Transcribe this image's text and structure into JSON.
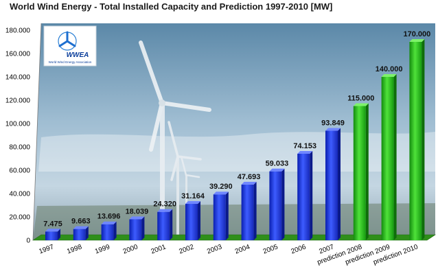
{
  "chart_data": {
    "type": "bar",
    "title": "World Wind Energy - Total Installed Capacity and Prediction 1997-2010 [MW]",
    "categories": [
      "1997",
      "1998",
      "1999",
      "2000",
      "2001",
      "2002",
      "2003",
      "2004",
      "2005",
      "2006",
      "2007",
      "prediction 2008",
      "prediction 2009",
      "prediction 2010"
    ],
    "values": [
      7475,
      9663,
      13696,
      18039,
      24320,
      31164,
      39290,
      47693,
      59033,
      74153,
      93849,
      115000,
      140000,
      170000
    ],
    "value_labels": [
      "7.475",
      "9.663",
      "13.696",
      "18.039",
      "24.320",
      "31.164",
      "39.290",
      "47.693",
      "59.033",
      "74.153",
      "93.849",
      "115.000",
      "140.000",
      "170.000"
    ],
    "ylim": [
      0,
      180000
    ],
    "yticks": [
      0,
      20000,
      40000,
      60000,
      80000,
      100000,
      120000,
      140000,
      160000,
      180000
    ],
    "ytick_labels": [
      "0",
      "20.000",
      "40.000",
      "60.000",
      "80.000",
      "100.000",
      "120.000",
      "140.000",
      "160.000",
      "180.000"
    ],
    "xlabel": "",
    "ylabel": "",
    "colors": {
      "actual": "#1f3fe0",
      "prediction": "#2fbf1f",
      "floor": "#3a9a1a"
    },
    "grid": false,
    "legend": "none"
  },
  "logo": {
    "name": "WWEA",
    "subtitle": "World Wind Energy Association"
  }
}
